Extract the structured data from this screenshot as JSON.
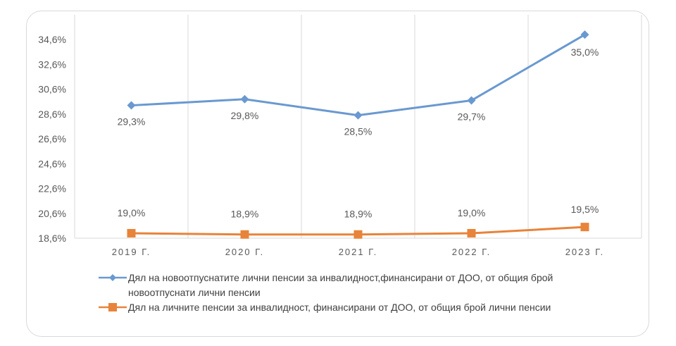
{
  "chart_data": {
    "type": "line",
    "categories": [
      "2019 Г.",
      "2020 Г.",
      "2021 Г.",
      "2022 Г.",
      "2023 Г."
    ],
    "series": [
      {
        "name": "Дял на новоотпуснатите лични пенсии за инвалидност,финансирани от ДОО, от общия брой новоотпуснати лични пенсии",
        "values": [
          29.3,
          29.8,
          28.5,
          29.7,
          35.0
        ],
        "labels": [
          "29,3%",
          "29,8%",
          "28,5%",
          "29,7%",
          "35,0%"
        ],
        "color": "#6a99d0",
        "marker": "diamond"
      },
      {
        "name": "Дял на личните пенсии за инвалидност, финансирани от ДОО, от общия брой лични пенсии",
        "values": [
          19.0,
          18.9,
          18.9,
          19.0,
          19.5
        ],
        "labels": [
          "19,0%",
          "18,9%",
          "18,9%",
          "19,0%",
          "19,5%"
        ],
        "color": "#e8833a",
        "marker": "square"
      }
    ],
    "y_ticks": [
      "18,6%",
      "20,6%",
      "22,6%",
      "24,6%",
      "26,6%",
      "28,6%",
      "30,6%",
      "32,6%",
      "34,6%"
    ],
    "y_tick_values": [
      18.6,
      20.6,
      22.6,
      24.6,
      26.6,
      28.6,
      30.6,
      32.6,
      34.6
    ],
    "ylim": [
      18.6,
      36.6
    ],
    "title": "",
    "xlabel": "",
    "ylabel": "",
    "grid": "vertical",
    "legend_placement": "bottom"
  }
}
